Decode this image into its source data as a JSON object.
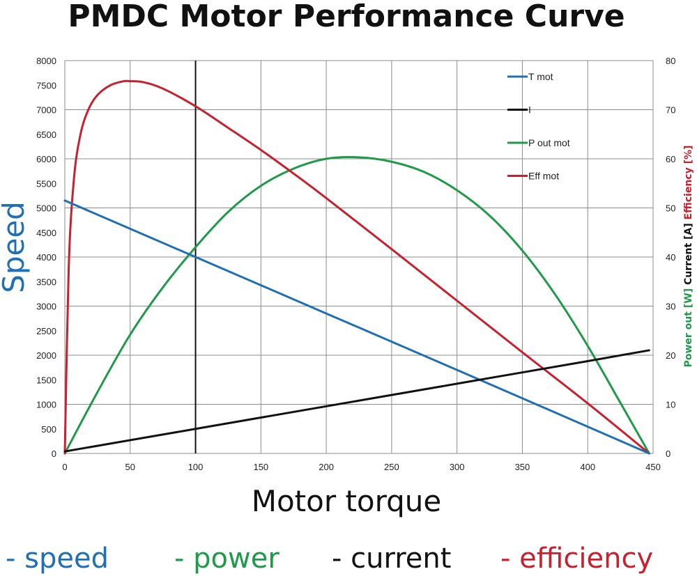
{
  "chart_data": {
    "type": "line",
    "title": "PMDC Motor Performance Curve",
    "xlabel": "Motor torque",
    "ylabel_left": "Speed",
    "ylabel_right": [
      {
        "text": "Power out [W]",
        "color": "#1e9a49"
      },
      {
        "text": " Current [A]",
        "color": "#111111"
      },
      {
        "text": " Efficiency [%]",
        "color": "#c8202e"
      }
    ],
    "xlim": [
      0,
      450
    ],
    "ylim_left": [
      0,
      8000
    ],
    "ylim_right": [
      0,
      80
    ],
    "x_ticks": [
      "0",
      "50",
      "100",
      "150",
      "200",
      "250",
      "300",
      "350",
      "400",
      "450"
    ],
    "y_left_ticks": [
      "0",
      "500",
      "1000",
      "1500",
      "2000",
      "2500",
      "3000",
      "3500",
      "4000",
      "4500",
      "5000",
      "5500",
      "6000",
      "6500",
      "7000",
      "7500",
      "8000"
    ],
    "y_right_ticks": [
      "0",
      "10",
      "20",
      "30",
      "40",
      "50",
      "60",
      "70",
      "80"
    ],
    "grid": true,
    "legend_position": "top-right",
    "series": [
      {
        "name": "T mot",
        "color": "#1f6fb5",
        "axis": "left",
        "x": [
          0,
          100,
          200,
          300,
          447
        ],
        "y": [
          5150,
          4000,
          2850,
          1700,
          0
        ]
      },
      {
        "name": "I",
        "color": "#111111",
        "axis": "right",
        "x": [
          0,
          100,
          200,
          300,
          400,
          447
        ],
        "y": [
          0.4,
          5,
          9.6,
          14.2,
          18.8,
          21
        ]
      },
      {
        "name": "P out mot",
        "color": "#1e9a49",
        "axis": "right",
        "x": [
          0,
          25,
          50,
          75,
          100,
          125,
          150,
          175,
          200,
          225,
          250,
          275,
          300,
          325,
          350,
          375,
          400,
          425,
          447
        ],
        "y": [
          0,
          12.5,
          24.2,
          33.8,
          42,
          49.2,
          54.5,
          58,
          60,
          60.3,
          59.4,
          57.3,
          53.6,
          48.4,
          41.3,
          32.4,
          21.9,
          10.3,
          0
        ]
      },
      {
        "name": "Eff mot",
        "color": "#c8202e",
        "axis": "right",
        "x": [
          0,
          3,
          7,
          12,
          18,
          25,
          35,
          45,
          50,
          60,
          75,
          100,
          125,
          150,
          175,
          200,
          250,
          300,
          350,
          400,
          447
        ],
        "y": [
          0,
          38,
          56,
          65,
          70,
          73,
          75,
          75.8,
          75.8,
          75.6,
          74.3,
          70.7,
          66.3,
          61.8,
          57,
          52,
          41.6,
          31.1,
          20.6,
          10.2,
          0
        ]
      }
    ],
    "annotations": [
      {
        "type": "vertical-line",
        "x": 100,
        "color": "#111111"
      }
    ]
  },
  "footer": {
    "speed": {
      "text": "- speed",
      "color": "#1f6fb5"
    },
    "power": {
      "text": "- power",
      "color": "#1e9a49"
    },
    "current": {
      "text": "- current",
      "color": "#111111"
    },
    "efficiency": {
      "text": "- efficiency",
      "color": "#c8202e"
    }
  }
}
